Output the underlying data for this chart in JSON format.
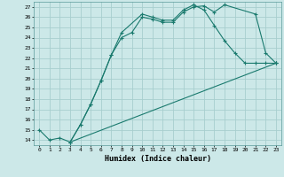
{
  "xlabel": "Humidex (Indice chaleur)",
  "bg_color": "#cce8e8",
  "grid_color": "#b0d0d0",
  "line_color": "#1a7a6e",
  "xlim": [
    -0.5,
    23.5
  ],
  "ylim": [
    13.5,
    27.5
  ],
  "xticks": [
    0,
    1,
    2,
    3,
    4,
    5,
    6,
    7,
    8,
    9,
    10,
    11,
    12,
    13,
    14,
    15,
    16,
    17,
    18,
    19,
    20,
    21,
    22,
    23
  ],
  "yticks": [
    14,
    15,
    16,
    17,
    18,
    19,
    20,
    21,
    22,
    23,
    24,
    25,
    26,
    27
  ],
  "line1_x": [
    0,
    1,
    2,
    3,
    4,
    5,
    6,
    7,
    8,
    9,
    10,
    11,
    12,
    13,
    14,
    15,
    16,
    17,
    18,
    21,
    22,
    23
  ],
  "line1_y": [
    15,
    14,
    14.2,
    13.8,
    15.5,
    17.5,
    19.8,
    22.3,
    24.0,
    24.5,
    26.0,
    25.8,
    25.5,
    25.5,
    26.5,
    27.0,
    27.1,
    26.5,
    27.2,
    26.3,
    22.5,
    21.5
  ],
  "line2_x": [
    3,
    4,
    5,
    6,
    7,
    8,
    10,
    11,
    12,
    13,
    14,
    15,
    16,
    17,
    18,
    19,
    20,
    21,
    22,
    23
  ],
  "line2_y": [
    13.8,
    15.5,
    17.5,
    19.8,
    22.3,
    24.5,
    26.3,
    26.0,
    25.7,
    25.7,
    26.7,
    27.2,
    26.7,
    25.2,
    23.7,
    22.5,
    21.5,
    21.5,
    21.5,
    21.5
  ],
  "line3_x": [
    3,
    23
  ],
  "line3_y": [
    13.8,
    21.5
  ]
}
